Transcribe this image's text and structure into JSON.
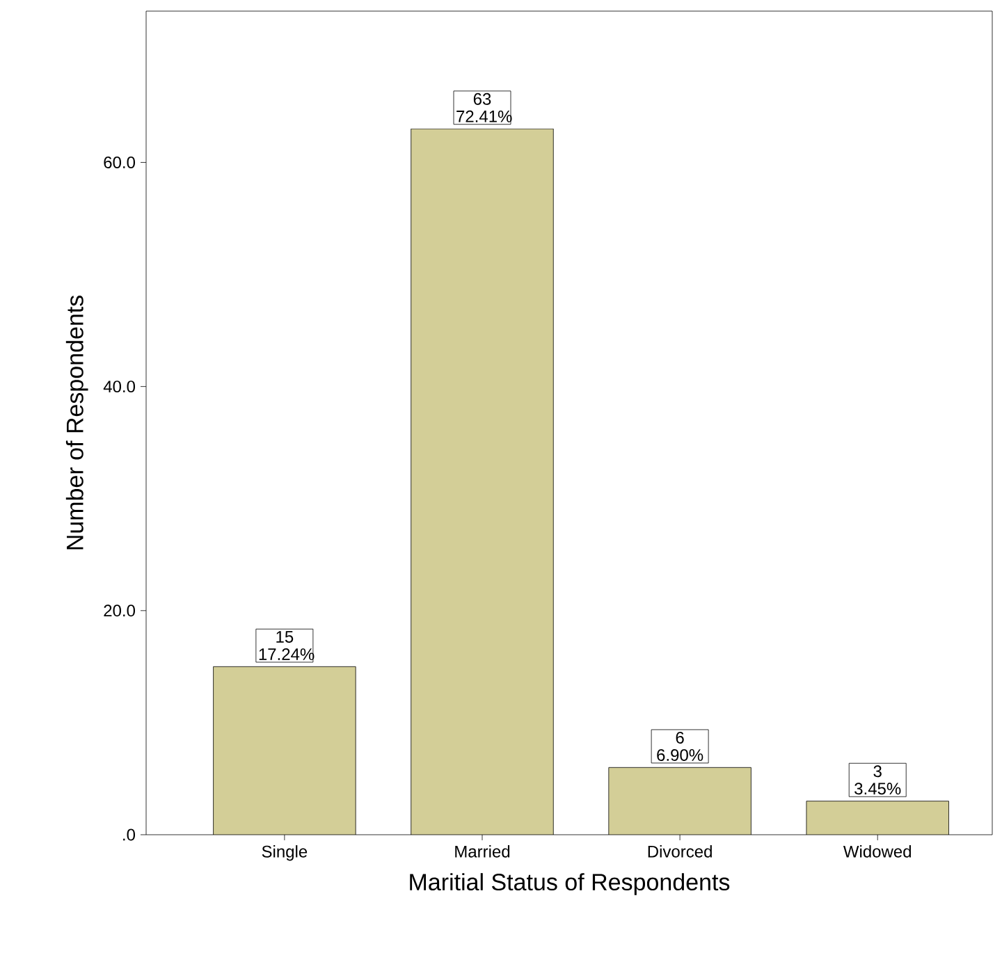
{
  "chart_data": {
    "type": "bar",
    "xlabel": "Maritial Status of Respondents",
    "ylabel": "Number of Respondents",
    "categories": [
      "Single",
      "Married",
      "Divorced",
      "Widowed"
    ],
    "values": [
      15,
      63,
      6,
      3
    ],
    "color": "#d3ce97",
    "value_labels": [
      "15 17.24%",
      "63 72.41%",
      "6 6.90%",
      "3 3.45%"
    ],
    "ylim": [
      0,
      73.5
    ],
    "yticks": [
      {
        "value": 0,
        "label": ".0"
      },
      {
        "value": 20,
        "label": "20.0"
      },
      {
        "value": 40,
        "label": "40.0"
      },
      {
        "value": 60,
        "label": "60.0"
      }
    ],
    "grid": false
  }
}
